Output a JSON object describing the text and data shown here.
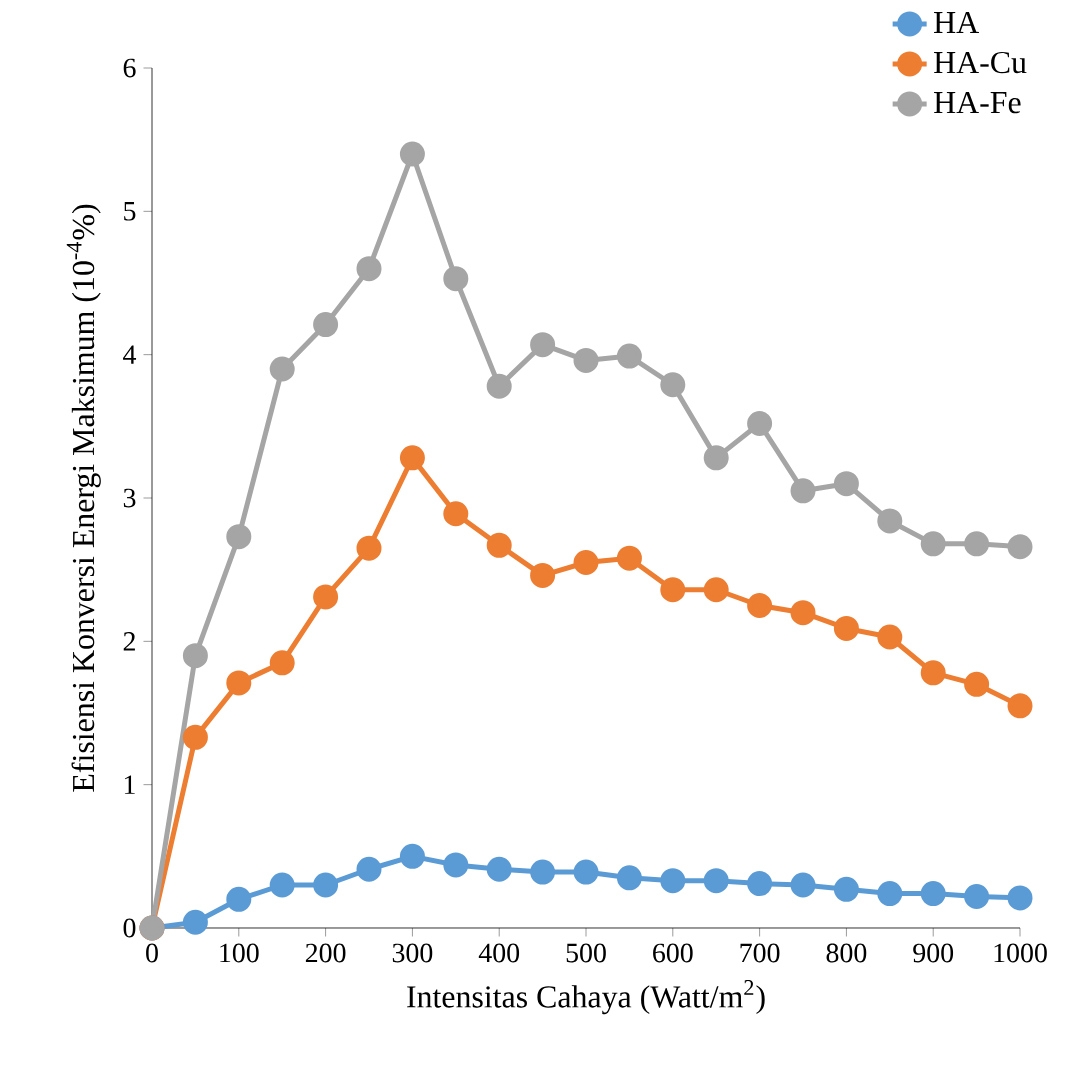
{
  "chart_data": {
    "type": "line",
    "xlabel": "Intensitas Cahaya (Watt/m$^{2}$)",
    "ylabel": "Efisiensi Konversi Energi Maksimum (10$^{-4}$%)",
    "x": [
      0,
      50,
      100,
      150,
      200,
      250,
      300,
      350,
      400,
      450,
      500,
      550,
      600,
      650,
      700,
      750,
      800,
      850,
      900,
      950,
      1000
    ],
    "series": [
      {
        "name": "HA",
        "color": "#5b9bd5",
        "values": [
          0,
          0.04,
          0.2,
          0.3,
          0.3,
          0.41,
          0.5,
          0.44,
          0.41,
          0.39,
          0.39,
          0.35,
          0.33,
          0.33,
          0.31,
          0.3,
          0.27,
          0.24,
          0.24,
          0.22,
          0.21
        ]
      },
      {
        "name": "HA-Cu",
        "color": "#ed7d31",
        "values": [
          0,
          1.33,
          1.71,
          1.85,
          2.31,
          2.65,
          3.28,
          2.89,
          2.67,
          2.46,
          2.55,
          2.58,
          2.36,
          2.36,
          2.25,
          2.2,
          2.09,
          2.03,
          1.78,
          1.7,
          1.55
        ]
      },
      {
        "name": "HA-Fe",
        "color": "#a5a5a5",
        "values": [
          0,
          1.9,
          2.73,
          3.9,
          4.21,
          4.6,
          5.4,
          4.53,
          3.78,
          4.07,
          3.96,
          3.99,
          3.79,
          3.28,
          3.52,
          3.05,
          3.1,
          2.84,
          2.68,
          2.68,
          2.66
        ]
      }
    ],
    "xlim": [
      0,
      1000
    ],
    "ylim": [
      0,
      6
    ],
    "xticks": [
      0,
      100,
      200,
      300,
      400,
      500,
      600,
      700,
      800,
      900,
      1000
    ],
    "yticks": [
      0,
      1,
      2,
      3,
      4,
      5,
      6
    ],
    "grid": false,
    "legend": "top right",
    "marker": "circle",
    "line_style": "solid"
  }
}
